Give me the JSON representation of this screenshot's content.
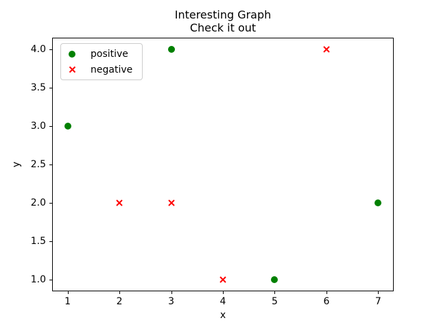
{
  "figure": {
    "background": "#ffffff",
    "frame_color": "#000000"
  },
  "chart_data": {
    "type": "scatter",
    "title": "Interesting Graph",
    "subtitle": "Check it out",
    "xlabel": "x",
    "ylabel": "y",
    "xlim": [
      0.7,
      7.3
    ],
    "ylim": [
      0.85,
      4.15
    ],
    "xticks": [
      "1",
      "2",
      "3",
      "4",
      "5",
      "6",
      "7"
    ],
    "yticks": [
      "1.0",
      "1.5",
      "2.0",
      "2.5",
      "3.0",
      "3.5",
      "4.0"
    ],
    "grid": false,
    "legend_position": "upper left",
    "series": [
      {
        "name": "positive",
        "marker": "circle",
        "color": "#008000",
        "points": [
          [
            1,
            3
          ],
          [
            3,
            4
          ],
          [
            5,
            1
          ],
          [
            7,
            2
          ]
        ]
      },
      {
        "name": "negative",
        "marker": "x",
        "color": "#ff0000",
        "points": [
          [
            2,
            2
          ],
          [
            3,
            2
          ],
          [
            4,
            1
          ],
          [
            6,
            4
          ]
        ]
      }
    ]
  }
}
